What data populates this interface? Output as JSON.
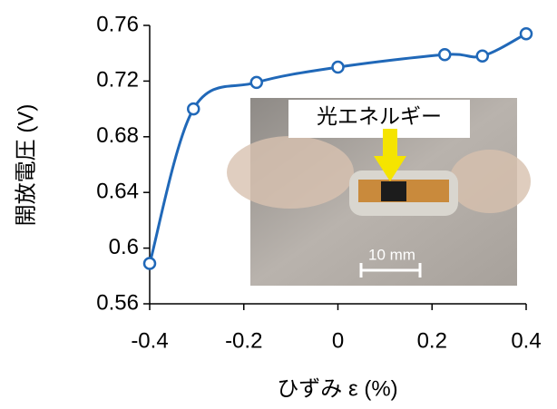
{
  "chart_data": {
    "type": "line",
    "x_label": "ひずみ ε (%)",
    "y_label": "開放電圧 (V)",
    "x": [
      -0.4,
      -0.307,
      -0.173,
      0,
      0.227,
      0.307,
      0.4
    ],
    "series": [
      {
        "color": "#2068b8",
        "values": [
          0.589,
          0.7,
          0.719,
          0.73,
          0.739,
          0.738,
          0.754
        ]
      }
    ],
    "xlim": [
      -0.4,
      0.4
    ],
    "xticks": [
      -0.4,
      -0.2,
      0,
      0.2,
      0.4
    ],
    "ylim": [
      0.56,
      0.76
    ],
    "yticks": [
      0.56,
      0.6,
      0.64,
      0.68,
      0.72,
      0.76
    ],
    "smooth": true,
    "annotations": [
      "光エネルギー",
      "10 mm"
    ]
  }
}
